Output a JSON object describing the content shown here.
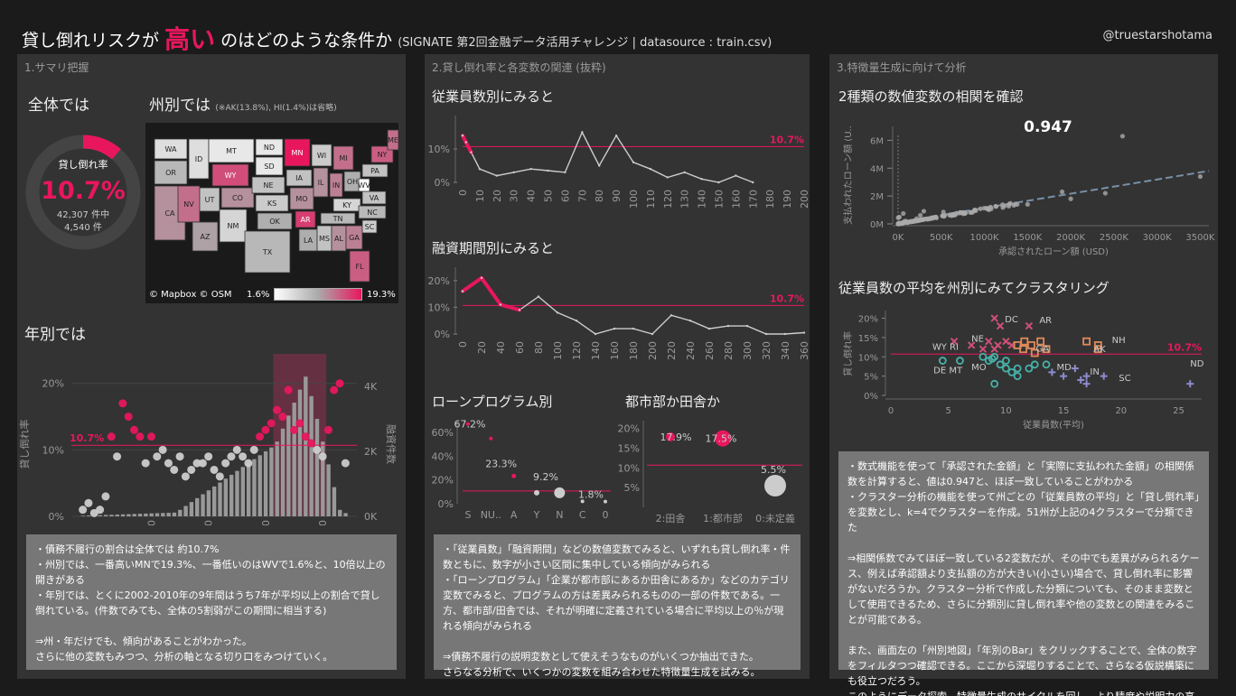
{
  "header": {
    "title_pre": "貸し倒れリスクが",
    "title_hl": "高い",
    "title_post": "のはどのような条件か",
    "title_sub": "(SIGNATE 第2回金融データ活用チャレンジ | datasource : train.csv)",
    "handle": "@truestarshotama"
  },
  "panel1": {
    "title": "1.サマリ把握",
    "overall_title": "全体では",
    "state_title": "州別では",
    "state_note": "(※AK(13.8%), HI(1.4%)は省略)",
    "donut_label": "貸し倒れ率",
    "donut_value": "10.7%",
    "donut_total": "42,307 件中",
    "donut_count": "4,540 件",
    "map_credit": "© Mapbox © OSM",
    "legend_min": "1.6%",
    "legend_max": "19.3%",
    "map_states": [
      "WA",
      "OR",
      "CA",
      "NV",
      "ID",
      "MT",
      "WY",
      "UT",
      "AZ",
      "CO",
      "NM",
      "ND",
      "SD",
      "NE",
      "KS",
      "OK",
      "TX",
      "MN",
      "IA",
      "MO",
      "AR",
      "LA",
      "WI",
      "IL",
      "IN",
      "MI",
      "OH",
      "KY",
      "TN",
      "MS",
      "AL",
      "GA",
      "FL",
      "SC",
      "NC",
      "VA",
      "WV",
      "PA",
      "NY",
      "ME"
    ],
    "year_title": "年別では",
    "year_ref_label": "10.7%",
    "year_yleft_label": "貸し倒れ率",
    "year_yright_label": "融資件数",
    "year_yleft_ticks": [
      "20%",
      "10%",
      "0%"
    ],
    "year_yright_ticks": [
      "4K",
      "2K",
      "0K"
    ],
    "year_x_ticks": [
      "1980",
      "1990",
      "2000",
      "2010"
    ],
    "note": "・債務不履行の割合は全体では 約10.7%\n・州別では、一番高いMNで19.3%、一番低いのはWVで1.6%と、10倍以上の開きがある\n・年別では、とくに2002-2010年の9年間はうち7年が平均以上の割合で貸し倒れている。(件数でみても、全体の5割弱がこの期間に相当する)\n\n⇒州・年だけでも、傾向があることがわかった。\nさらに他の変数もみつつ、分析の軸となる切り口をみつけていく。"
  },
  "panel2": {
    "title": "2.貸し倒れ率と各変数の関連 (抜粋)",
    "emp_title": "従業員数別にみると",
    "emp_ref": "10.7%",
    "emp_y_ticks": [
      "10%",
      "0%"
    ],
    "emp_x_ticks": [
      "0",
      "10",
      "20",
      "30",
      "40",
      "50",
      "60",
      "70",
      "80",
      "90",
      "100",
      "110",
      "120",
      "130",
      "140",
      "150",
      "160",
      "170",
      "180",
      "190",
      "200"
    ],
    "term_title": "融資期間別にみると",
    "term_ref": "10.7%",
    "term_y_ticks": [
      "20%",
      "10%",
      "0%"
    ],
    "term_x_ticks": [
      "0",
      "20",
      "40",
      "60",
      "80",
      "100",
      "120",
      "140",
      "160",
      "180",
      "200",
      "220",
      "240",
      "260",
      "280",
      "300",
      "320",
      "340",
      "360"
    ],
    "prog_title": "ローンプログラム別",
    "prog_y_ticks": [
      "60%",
      "40%",
      "20%",
      "0%"
    ],
    "prog_x_ticks": [
      "S",
      "NU..",
      "A",
      "Y",
      "N",
      "C",
      "0"
    ],
    "prog_labels": [
      "67.2%",
      "23.3%",
      "9.2%",
      "1.8%"
    ],
    "urban_title": "都市部か田舎か",
    "urban_y_ticks": [
      "20%",
      "15%",
      "10%",
      "5%"
    ],
    "urban_x_ticks": [
      "2:田舎",
      "1:都市部",
      "0:未定義"
    ],
    "urban_labels": [
      "17.9%",
      "17.5%",
      "5.5%"
    ],
    "note": "・「従業員数」「融資期間」などの数値変数でみると、いずれも貸し倒れ率・件数ともに、数字が小さい区間に集中している傾向がみられる\n・「ローンプログラム」「企業が都市部にあるか田舎にあるか」などのカテゴリ変数でみると、プログラムの方は差異みられるものの一部の件数である。一方、都市部/田舎では、それが明確に定義されている場合に平均以上の％が現れる傾向がみられる\n\n⇒債務不履行の説明変数として使えそうなものがいくつか抽出できた。\nさらなる分析で、いくつかの変数を組み合わせた特徴量生成を試みる。"
  },
  "panel3": {
    "title": "3.特徴量生成に向けて分析",
    "corr_title": "2種類の数値変数の相関を確認",
    "corr_value": "0.947",
    "corr_y_label": "支払われたローン額 (U..",
    "corr_y_ticks": [
      "6M",
      "4M",
      "2M",
      "0M"
    ],
    "corr_x_ticks": [
      "0K",
      "500K",
      "1000K",
      "1500K",
      "2000K",
      "2500K",
      "3000K",
      "3500K"
    ],
    "corr_x_label": "承認されたローン額 (USD)",
    "clust_title": "従業員数の平均を州別にみてクラスタリング",
    "clust_y_label": "貸し倒れ率",
    "clust_y_ticks": [
      "20%",
      "15%",
      "10%",
      "5%",
      "0%"
    ],
    "clust_x_ticks": [
      "0",
      "5",
      "10",
      "15",
      "20",
      "25"
    ],
    "clust_x_label": "従業員数(平均)",
    "clust_ref": "10.7%",
    "clust_labels": [
      "DC",
      "AR",
      "WY RI",
      "NE",
      "GA",
      "NH",
      "AK",
      "DE MT",
      "MO",
      "MD",
      "IN",
      "SC",
      "ND"
    ],
    "note": "・数式機能を使って「承認された金額」と「実際に支払われた金額」の相関係数を計算すると、値は0.947と、ほぼ一致していることがわかる\n・クラスター分析の機能を使って州ごとの「従業員数の平均」と「貸し倒れ率」を変数とし、k=4でクラスターを作成。51州が上記の4クラスターで分類できた\n\n⇒相関係数でみてほぼ一致している2変数だが、その中でも差異がみられるケース、例えば承認額より支払額の方が大きい(小さい)場合で、貸し倒れ率に影響がないだろうか。クラスター分析で作成した分類についても、そのまま変数として使用できるため、さらに分類別に貸し倒れ率や他の変数との関連をみることが可能である。\n\nまた、画面左の「州別地図」「年別のBar」をクリックすることで、全体の数字をフィルタつつ確認できる。ここから深堀りすることで、さらなる仮説構築にも役立つだろう。\nこのようにデータ探索、特徴量生成のサイクルを回し、より精度や説明力の高いモデルの作成につなげていきたい。"
  },
  "chart_data": [
    {
      "type": "line",
      "title": "従業員数別にみると",
      "x": [
        0,
        2,
        5,
        10,
        20,
        30,
        40,
        50,
        60,
        70,
        80,
        90,
        100,
        110,
        120,
        130,
        140,
        150,
        160,
        170
      ],
      "values": [
        14,
        12,
        9,
        4,
        2,
        3,
        4,
        3.5,
        3,
        15,
        5,
        14,
        6,
        4,
        1.5,
        3,
        1,
        0,
        2,
        0
      ],
      "ref": 10.7,
      "ylim": [
        0,
        20
      ]
    },
    {
      "type": "line",
      "title": "融資期間別にみると",
      "x": [
        0,
        20,
        40,
        60,
        80,
        100,
        120,
        140,
        160,
        180,
        200,
        220,
        240,
        260,
        280,
        300,
        320,
        340,
        360
      ],
      "values": [
        16,
        21,
        11,
        9,
        14,
        8,
        5,
        0,
        2,
        2,
        0,
        7,
        5,
        2,
        3,
        3,
        0,
        0,
        0.5
      ],
      "ref": 10.7,
      "ylim": [
        0,
        25
      ]
    },
    {
      "type": "scatter",
      "title": "ローンプログラム別",
      "categories": [
        "S",
        "NU..",
        "A",
        "Y",
        "N",
        "C",
        "0"
      ],
      "values": [
        67.2,
        55,
        23.3,
        9.2,
        9.2,
        2,
        1.8
      ],
      "ylim": [
        0,
        70
      ]
    },
    {
      "type": "scatter",
      "title": "都市部か田舎か",
      "categories": [
        "2:田舎",
        "1:都市部",
        "0:未定義"
      ],
      "values": [
        17.9,
        17.5,
        5.5
      ],
      "ylim": [
        0,
        22
      ]
    },
    {
      "type": "bar",
      "title": "年別では",
      "x": [
        1969,
        1976,
        1980,
        1985,
        1988,
        1990,
        1992,
        1994,
        1996,
        1998,
        2000,
        2002,
        2004,
        2006,
        2008,
        2010,
        2012,
        2014
      ],
      "counts": [
        50,
        80,
        100,
        250,
        350,
        1100,
        1500,
        1600,
        1800,
        2000,
        2200,
        2600,
        3600,
        4300,
        3600,
        2000,
        800,
        200
      ],
      "rate": [
        1,
        12,
        17,
        13,
        12,
        9,
        8,
        9,
        7,
        6,
        8,
        14,
        12,
        19,
        15,
        13,
        11,
        19
      ]
    }
  ]
}
